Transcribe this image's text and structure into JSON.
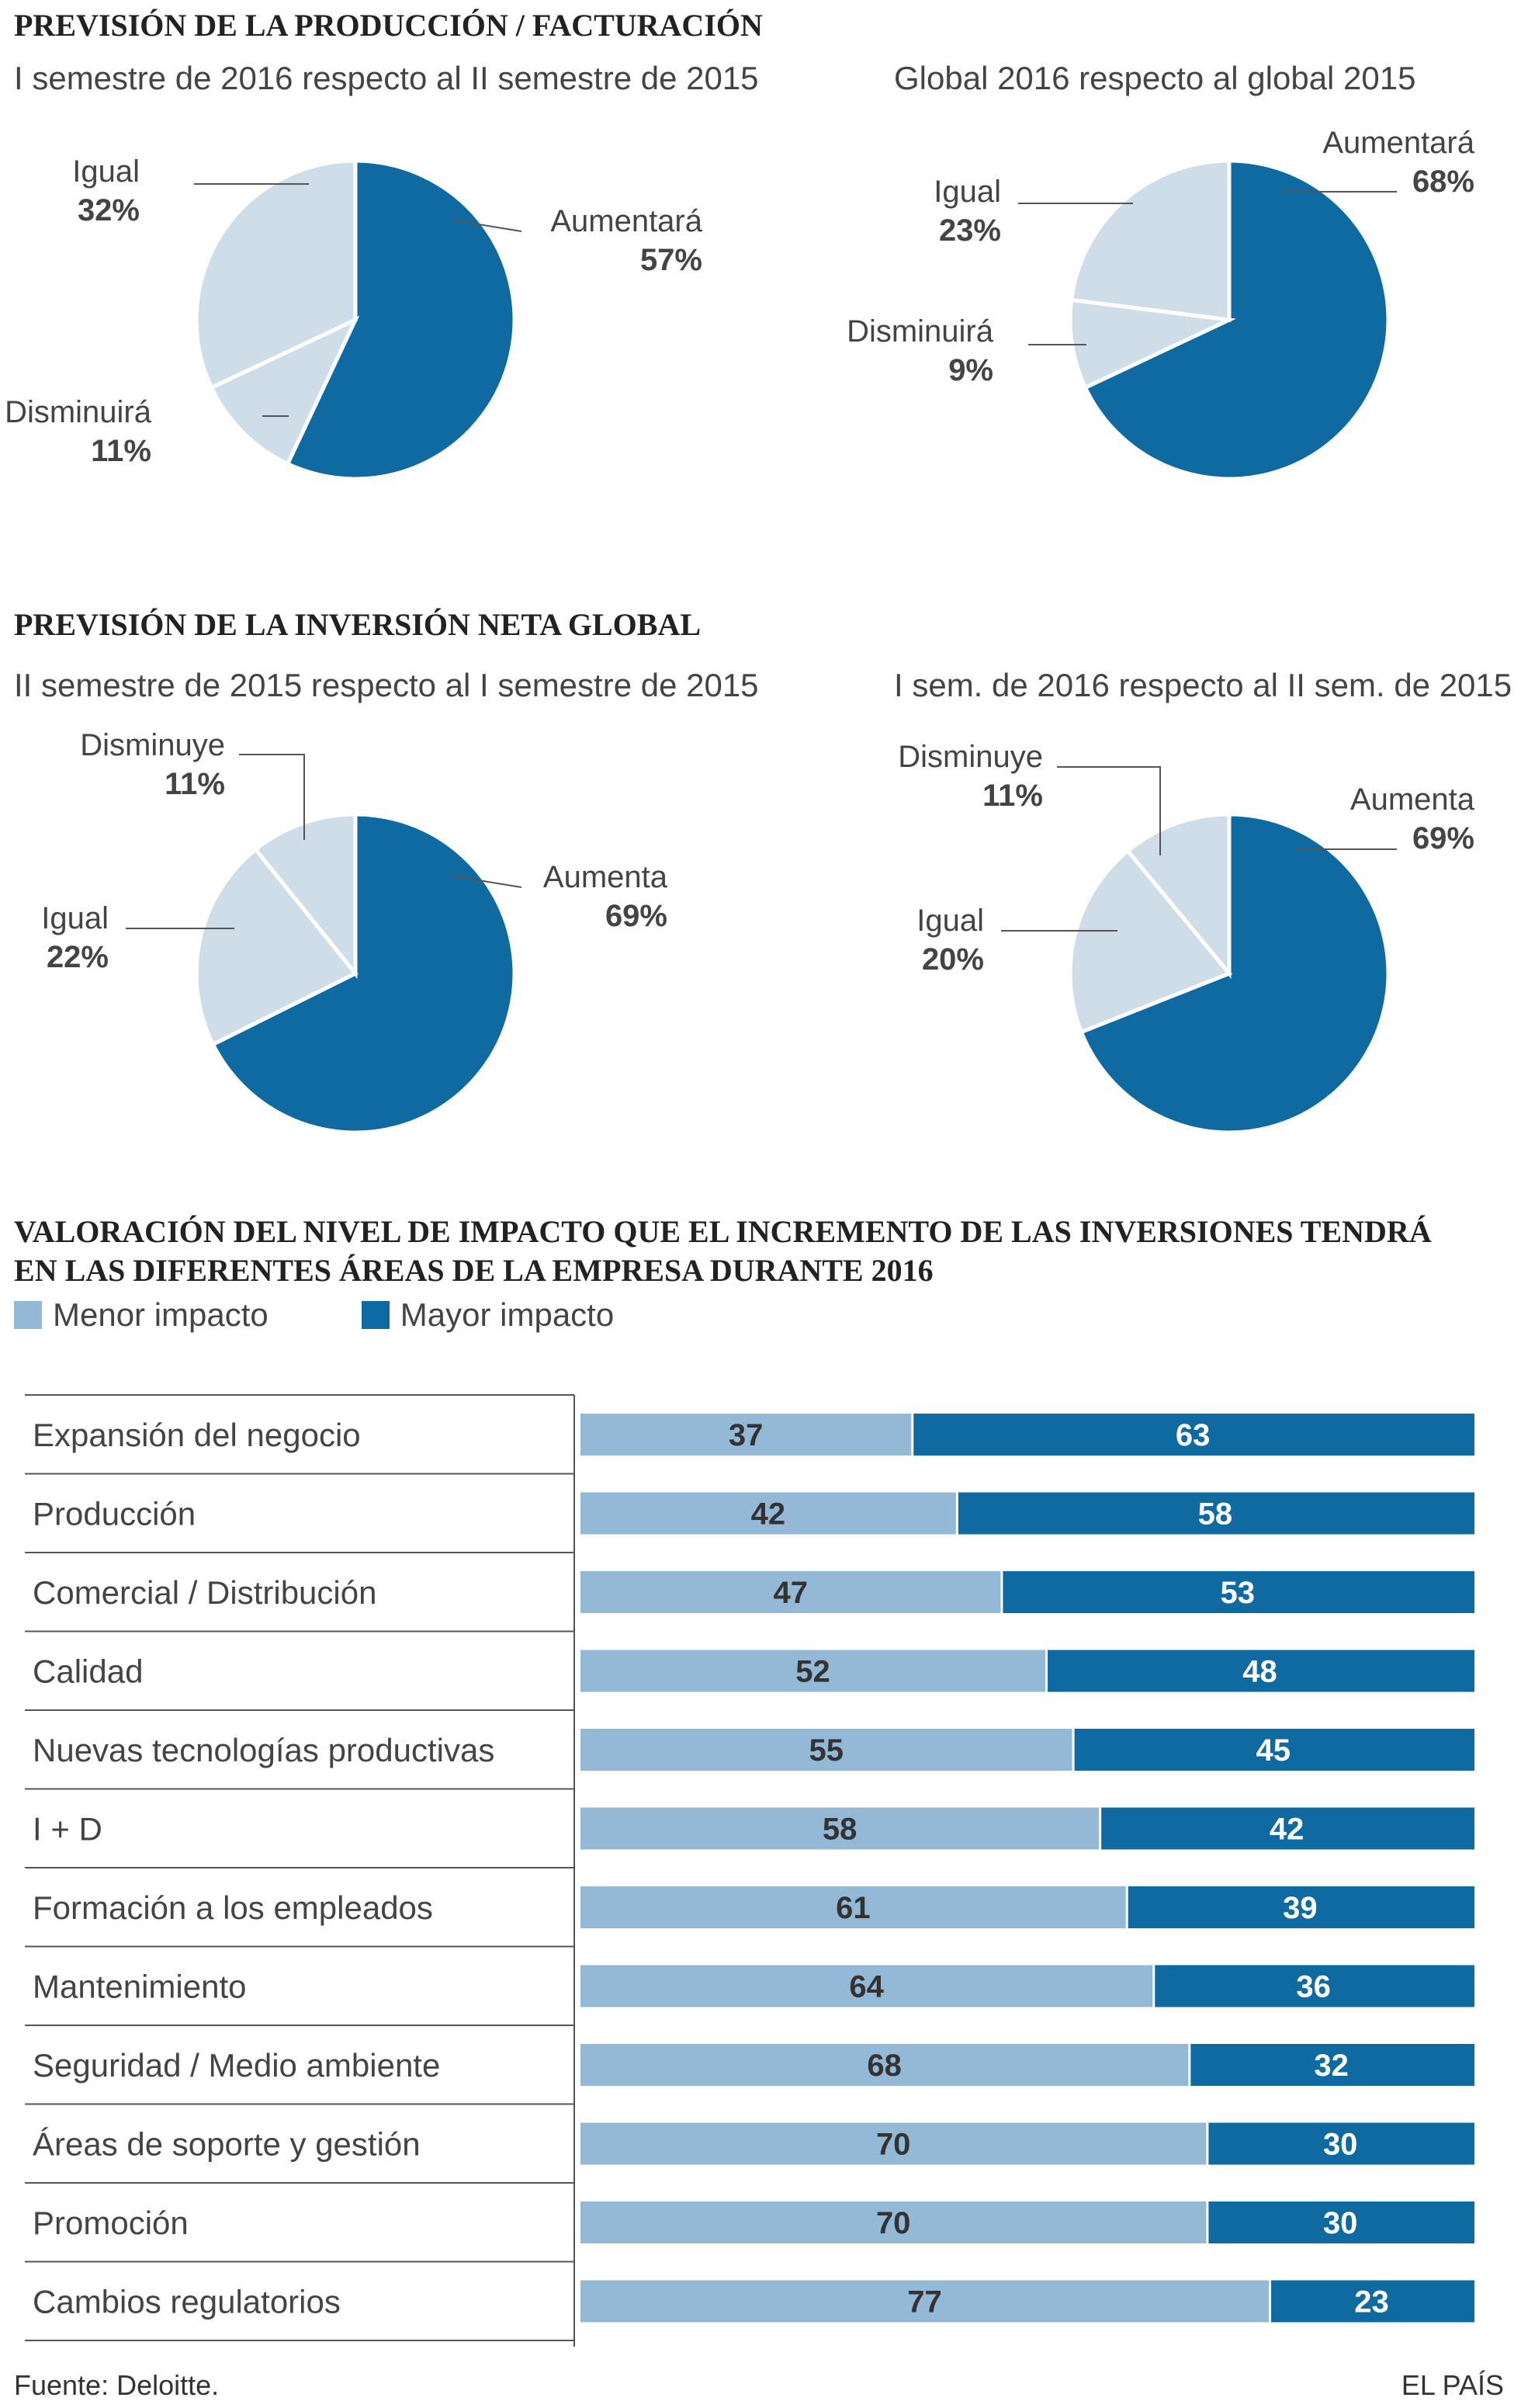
{
  "colors": {
    "dark": "#0e6aa0",
    "light": "#cfdde9",
    "bar_light": "#93b9d6",
    "dark_text": "#ffffff",
    "light_text": "#333333"
  },
  "section1": {
    "title": "PREVISIÓN DE LA PRODUCCIÓN / FACTURACIÓN",
    "left_subtitle": "I semestre de 2016 respecto al II semestre de 2015",
    "right_subtitle": "Global 2016 respecto al global 2015"
  },
  "section2": {
    "title": "PREVISIÓN DE LA INVERSIÓN NETA GLOBAL",
    "left_subtitle": "II semestre de 2015 respecto al I semestre de 2015",
    "right_subtitle": "I sem. de 2016 respecto al II sem. de 2015"
  },
  "section3": {
    "title_line1": "VALORACIÓN DEL NIVEL DE IMPACTO QUE EL INCREMENTO DE LAS INVERSIONES TENDRÁ",
    "title_line2": "EN LAS DIFERENTES ÁREAS DE LA EMPRESA DURANTE 2016",
    "legend_minor": "Menor impacto",
    "legend_major": "Mayor impacto"
  },
  "chart_data": [
    {
      "type": "pie",
      "title": "I semestre de 2016 respecto al II semestre de 2015",
      "slices": [
        {
          "label": "Aumentará",
          "value": 57,
          "display": "57%"
        },
        {
          "label": "Disminuirá",
          "value": 11,
          "display": "11%"
        },
        {
          "label": "Igual",
          "value": 32,
          "display": "32%"
        }
      ]
    },
    {
      "type": "pie",
      "title": "Global 2016 respecto al global 2015",
      "slices": [
        {
          "label": "Aumentará",
          "value": 68,
          "display": "68%"
        },
        {
          "label": "Disminuirá",
          "value": 9,
          "display": "9%"
        },
        {
          "label": "Igual",
          "value": 23,
          "display": "23%"
        }
      ]
    },
    {
      "type": "pie",
      "title": "II semestre de 2015 respecto al I semestre de 2015",
      "slices": [
        {
          "label": "Aumenta",
          "value": 69,
          "display": "69%"
        },
        {
          "label": "Igual",
          "value": 22,
          "display": "22%"
        },
        {
          "label": "Disminuye",
          "value": 11,
          "display": "11%"
        }
      ]
    },
    {
      "type": "pie",
      "title": "I sem. de 2016 respecto al II sem. de 2015",
      "slices": [
        {
          "label": "Aumenta",
          "value": 69,
          "display": "69%"
        },
        {
          "label": "Igual",
          "value": 20,
          "display": "20%"
        },
        {
          "label": "Disminuye",
          "value": 11,
          "display": "11%"
        }
      ]
    },
    {
      "type": "bar",
      "stacked": true,
      "orientation": "horizontal",
      "title": "VALORACIÓN DEL NIVEL DE IMPACTO QUE EL INCREMENTO DE LAS INVERSIONES TENDRÁ EN LAS DIFERENTES ÁREAS DE LA EMPRESA DURANTE 2016",
      "categories": [
        "Expansión del negocio",
        "Producción",
        "Comercial / Distribución",
        "Calidad",
        "Nuevas tecnologías productivas",
        "I + D",
        "Formación a los empleados",
        "Mantenimiento",
        "Seguridad / Medio ambiente",
        "Áreas de soporte y gestión",
        "Promoción",
        "Cambios regulatorios"
      ],
      "series": [
        {
          "name": "Menor impacto",
          "values": [
            37,
            42,
            47,
            52,
            55,
            58,
            61,
            64,
            68,
            70,
            70,
            77
          ]
        },
        {
          "name": "Mayor impacto",
          "values": [
            63,
            58,
            53,
            48,
            45,
            42,
            39,
            36,
            32,
            30,
            30,
            23
          ]
        }
      ]
    }
  ],
  "footer": {
    "source": "Fuente: Deloitte.",
    "brand": "EL PAÍS"
  }
}
